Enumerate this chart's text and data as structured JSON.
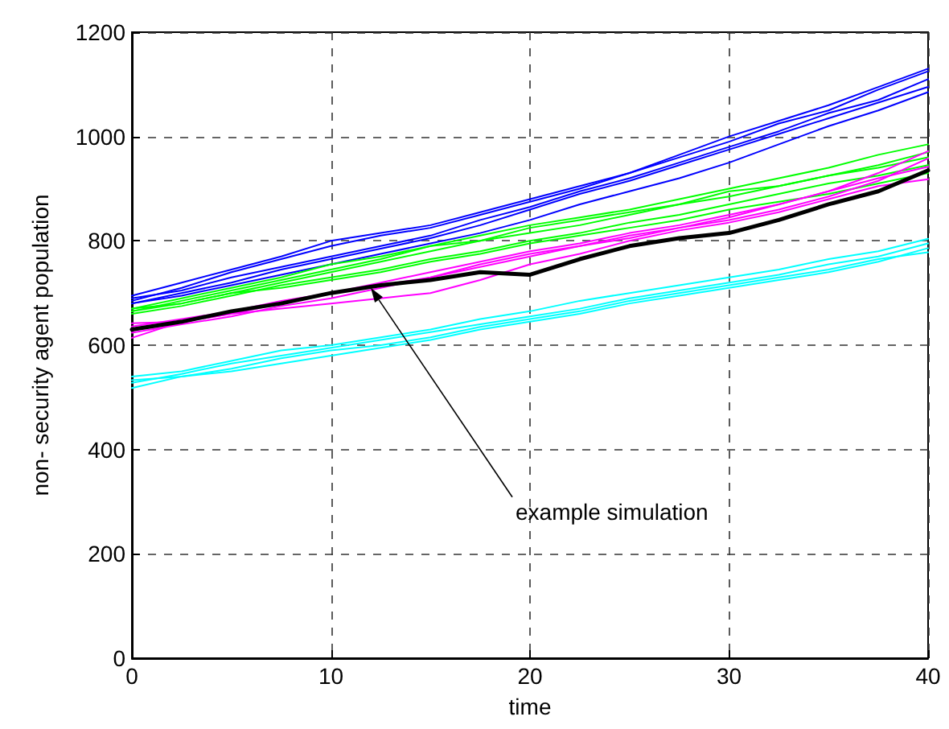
{
  "chart_data": {
    "type": "line",
    "xlabel": "time",
    "ylabel": "non- security agent population",
    "xlim": [
      0,
      40
    ],
    "xticks": [
      0,
      10,
      20,
      30,
      40
    ],
    "ylim": [
      0,
      1200
    ],
    "yticks": [
      0,
      200,
      400,
      600,
      800,
      1000,
      1200
    ],
    "grid": true,
    "marker": "none",
    "line_style": "solid",
    "x": [
      0,
      2.5,
      5,
      7.5,
      10,
      12.5,
      15,
      17.5,
      20,
      22.5,
      25,
      27.5,
      30,
      32.5,
      35,
      37.5,
      40
    ],
    "annotations": [
      {
        "text": "example simulation",
        "x": 12,
        "y": 710
      }
    ],
    "series": [
      {
        "color": "#0000ff",
        "values": [
          695,
          720,
          745,
          770,
          800,
          815,
          830,
          855,
          880,
          905,
          930,
          960,
          990,
          1025,
          1050,
          1090,
          1125
        ]
      },
      {
        "color": "#0000ff",
        "values": [
          685,
          710,
          740,
          765,
          790,
          810,
          825,
          850,
          875,
          900,
          930,
          965,
          1000,
          1030,
          1060,
          1095,
          1130
        ]
      },
      {
        "color": "#0000ff",
        "values": [
          680,
          700,
          720,
          745,
          765,
          785,
          805,
          830,
          860,
          890,
          915,
          945,
          975,
          1005,
          1035,
          1065,
          1095
        ]
      },
      {
        "color": "#0000ff",
        "values": [
          690,
          705,
          730,
          750,
          770,
          790,
          810,
          840,
          865,
          895,
          920,
          950,
          980,
          1010,
          1045,
          1070,
          1110
        ]
      },
      {
        "color": "#0000ff",
        "values": [
          680,
          695,
          715,
          735,
          755,
          775,
          795,
          815,
          840,
          870,
          895,
          920,
          950,
          985,
          1020,
          1050,
          1085
        ]
      },
      {
        "color": "#00ff00",
        "values": [
          670,
          690,
          710,
          730,
          755,
          770,
          790,
          810,
          830,
          845,
          860,
          880,
          900,
          920,
          940,
          965,
          985
        ]
      },
      {
        "color": "#00ff00",
        "values": [
          665,
          680,
          700,
          720,
          740,
          760,
          780,
          800,
          815,
          830,
          850,
          870,
          885,
          905,
          925,
          940,
          960
        ]
      },
      {
        "color": "#00ff00",
        "values": [
          660,
          675,
          695,
          715,
          730,
          745,
          765,
          780,
          800,
          815,
          835,
          850,
          870,
          890,
          910,
          925,
          945
        ]
      },
      {
        "color": "#00ff00",
        "values": [
          665,
          685,
          705,
          725,
          745,
          765,
          790,
          800,
          825,
          840,
          855,
          870,
          895,
          905,
          925,
          945,
          970
        ]
      },
      {
        "color": "#00ff00",
        "values": [
          670,
          680,
          700,
          710,
          725,
          740,
          760,
          775,
          795,
          810,
          825,
          840,
          860,
          875,
          890,
          910,
          930
        ]
      },
      {
        "color": "#ff00ff",
        "values": [
          636,
          650,
          665,
          685,
          700,
          715,
          730,
          750,
          770,
          790,
          810,
          825,
          845,
          870,
          895,
          930,
          972
        ]
      },
      {
        "color": "#ff00ff",
        "values": [
          624,
          640,
          655,
          675,
          690,
          710,
          730,
          755,
          775,
          790,
          805,
          825,
          840,
          860,
          885,
          915,
          958
        ]
      },
      {
        "color": "#ff00ff",
        "values": [
          642,
          645,
          660,
          670,
          680,
          690,
          700,
          725,
          755,
          775,
          800,
          820,
          835,
          855,
          880,
          905,
          918
        ]
      },
      {
        "color": "#ff00ff",
        "values": [
          614,
          645,
          660,
          680,
          700,
          720,
          740,
          760,
          780,
          795,
          815,
          830,
          850,
          870,
          895,
          920,
          942
        ]
      },
      {
        "color": "#00ffff",
        "values": [
          528,
          545,
          565,
          580,
          595,
          610,
          625,
          640,
          655,
          670,
          690,
          705,
          720,
          735,
          755,
          770,
          795
        ]
      },
      {
        "color": "#00ffff",
        "values": [
          518,
          540,
          555,
          575,
          590,
          600,
          615,
          635,
          650,
          665,
          685,
          700,
          715,
          730,
          745,
          765,
          778
        ]
      },
      {
        "color": "#00ffff",
        "values": [
          540,
          550,
          570,
          590,
          600,
          615,
          630,
          650,
          665,
          685,
          700,
          715,
          730,
          745,
          765,
          780,
          804
        ]
      },
      {
        "color": "#00ffff",
        "values": [
          533,
          540,
          550,
          565,
          580,
          595,
          610,
          630,
          645,
          660,
          680,
          695,
          710,
          725,
          740,
          760,
          786
        ]
      },
      {
        "color": "#000000",
        "values": [
          630,
          645,
          665,
          680,
          700,
          715,
          725,
          740,
          735,
          765,
          790,
          805,
          815,
          840,
          870,
          895,
          935
        ]
      }
    ]
  }
}
